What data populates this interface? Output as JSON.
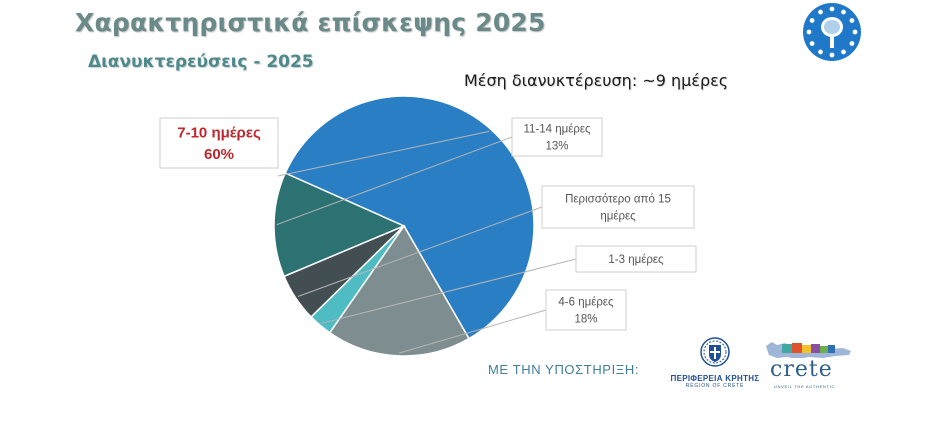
{
  "header": {
    "title": "Χαρακτηριστικά επίσκεψης 2025",
    "subtitle": "Διανυκτερεύσεις - 2025",
    "average": "Μέση διανυκτέρευση: ~9 ημέρες"
  },
  "chart_data": {
    "type": "pie",
    "slices": [
      {
        "label": "7-10 ημέρες",
        "value_label": "60%",
        "value": 60,
        "color": "#2a7fc4",
        "highlight": true
      },
      {
        "label": "11-14 ημέρες",
        "value_label": "13%",
        "value": 13,
        "color": "#2d7272"
      },
      {
        "label": "Περισσότερο από 15 ημέρες",
        "value_label": "",
        "value": 6,
        "color": "#434e52"
      },
      {
        "label": "1-3 ημέρες",
        "value_label": "",
        "value": 3,
        "color": "#4fbcc4"
      },
      {
        "label": "4-6 ημέρες",
        "value_label": "18%",
        "value": 18,
        "color": "#7e8d8f"
      }
    ],
    "label_colors": {
      "highlight": "#c0262d",
      "normal": "#555555"
    }
  },
  "footer": {
    "support_label": "ΜΕ ΤΗΝ ΥΠΟΣΤΗΡΙΞΗ:",
    "region_name": "ΠΕΡΙΦΕΡΕΙΑ ΚΡΗΤΗΣ",
    "region_sub": "REGION OF CRETE",
    "crete_word": "crete",
    "crete_tag": "UNVEIL THE AUTHENTIC"
  },
  "icons": {
    "seal": "eu-star-tree-seal",
    "region": "hellenic-emblem-icon",
    "crete": "crete-island-logo"
  }
}
